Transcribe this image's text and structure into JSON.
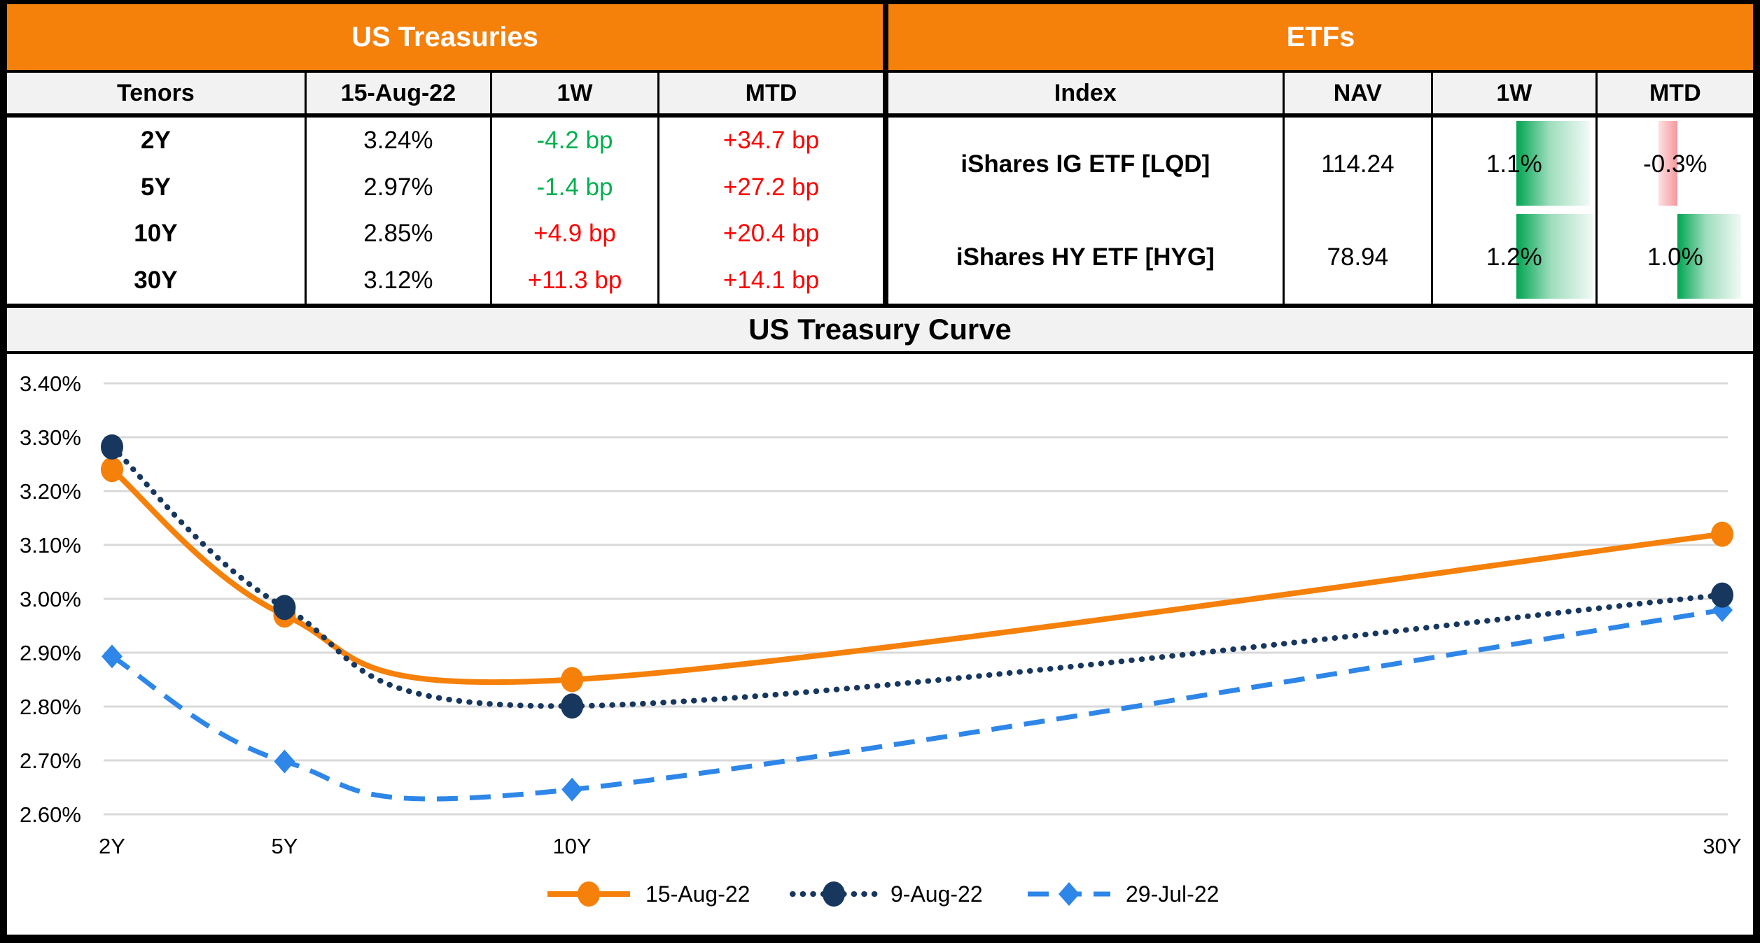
{
  "colors": {
    "accent_orange": "#F5800A",
    "header_gray": "#F2F2F2",
    "up_red": "#FF0000",
    "down_green": "#00B050",
    "gridline": "#D9D9D9",
    "bar_green": "#00A551",
    "bar_red": "#F4757C"
  },
  "treasuries": {
    "title": "US Treasuries",
    "headers": [
      "Tenors",
      "15-Aug-22",
      "1W",
      "MTD"
    ],
    "rows": [
      {
        "tenor": "2Y",
        "rate": "3.24%",
        "w1": {
          "label": "-4.2 bp",
          "bp": -4.2
        },
        "mtd": {
          "label": "+34.7 bp",
          "bp": 34.7
        }
      },
      {
        "tenor": "5Y",
        "rate": "2.97%",
        "w1": {
          "label": "-1.4 bp",
          "bp": -1.4
        },
        "mtd": {
          "label": "+27.2 bp",
          "bp": 27.2
        }
      },
      {
        "tenor": "10Y",
        "rate": "2.85%",
        "w1": {
          "label": "+4.9 bp",
          "bp": 4.9
        },
        "mtd": {
          "label": "+20.4 bp",
          "bp": 20.4
        }
      },
      {
        "tenor": "30Y",
        "rate": "3.12%",
        "w1": {
          "label": "+11.3 bp",
          "bp": 11.3
        },
        "mtd": {
          "label": "+14.1 bp",
          "bp": 14.1
        }
      }
    ]
  },
  "etfs": {
    "title": "ETFs",
    "headers": [
      "Index",
      "NAV",
      "1W",
      "MTD"
    ],
    "rows": [
      {
        "index": "iShares IG ETF [LQD]",
        "nav": "114.24",
        "w1": {
          "label": "1.1%",
          "value": 1.1
        },
        "mtd": {
          "label": "-0.3%",
          "value": -0.3
        }
      },
      {
        "index": "iShares HY ETF [HYG]",
        "nav": "78.94",
        "w1": {
          "label": "1.2%",
          "value": 1.2
        },
        "mtd": {
          "label": "1.0%",
          "value": 1.0
        }
      }
    ]
  },
  "chart_data": {
    "type": "line",
    "title": "US Treasury Curve",
    "categories": [
      "2Y",
      "5Y",
      "10Y",
      "30Y"
    ],
    "x_years": [
      2,
      5,
      10,
      30
    ],
    "series": [
      {
        "name": "15-Aug-22",
        "color": "#F5800A",
        "style": "solid",
        "marker": "circle",
        "values": [
          3.24,
          2.97,
          2.85,
          3.12
        ]
      },
      {
        "name": "9-Aug-22",
        "color": "#17375E",
        "style": "dotted",
        "marker": "circle",
        "values": [
          3.282,
          2.984,
          2.801,
          3.007
        ]
      },
      {
        "name": "29-Jul-22",
        "color": "#2E86E8",
        "style": "dashed",
        "marker": "diamond",
        "values": [
          2.893,
          2.698,
          2.646,
          2.979
        ]
      }
    ],
    "ylim": [
      2.6,
      3.4
    ],
    "ytick_step": 0.1,
    "ytick_format": "percent2",
    "grid": true,
    "legend_position": "bottom"
  }
}
